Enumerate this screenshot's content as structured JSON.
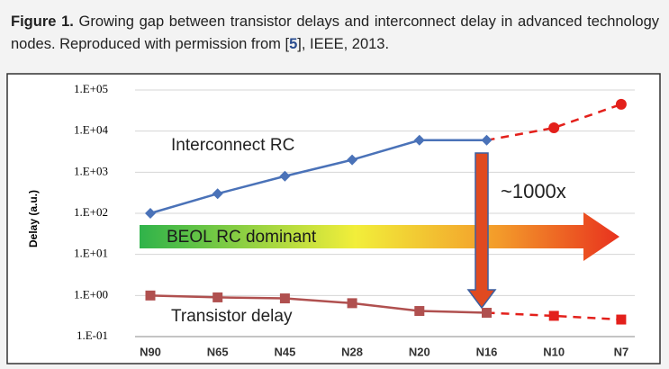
{
  "caption": {
    "label": "Figure 1.",
    "text_before": "Growing gap between transistor delays and interconnect delay in advanced technology nodes. Reproduced with permission from [",
    "ref": "5",
    "text_after": "], IEEE, 2013."
  },
  "chart_data": {
    "type": "line",
    "y_label": "Delay (a.u.)",
    "log_scale": true,
    "grid": true,
    "categories": [
      "N90",
      "N65",
      "N45",
      "N28",
      "N20",
      "N16",
      "N10",
      "N7"
    ],
    "projected_from": 5,
    "series": [
      {
        "name": "Interconnect RC",
        "color": "#4a72b8",
        "projected_color": "#e3201b",
        "marker": "diamond",
        "projected_marker": "circle",
        "values": [
          100,
          300,
          800,
          2000,
          6000,
          6000,
          12000,
          45000
        ]
      },
      {
        "name": "Transistor delay",
        "color": "#b0504f",
        "projected_color": "#e3201b",
        "marker": "square",
        "projected_marker": "square",
        "values": [
          1.0,
          0.9,
          0.85,
          0.65,
          0.42,
          0.38,
          0.32,
          0.26
        ]
      }
    ],
    "ylim": [
      0.1,
      100000
    ],
    "yticks": [
      {
        "value": 0.1,
        "label": "1.E-01"
      },
      {
        "value": 1,
        "label": "1.E+00"
      },
      {
        "value": 10,
        "label": "1.E+01"
      },
      {
        "value": 100,
        "label": "1.E+02"
      },
      {
        "value": 1000,
        "label": "1.E+03"
      },
      {
        "value": 10000,
        "label": "1.E+04"
      },
      {
        "value": 100000,
        "label": "1.E+05"
      }
    ],
    "annotations": {
      "gap": "~1000x",
      "region": "BEOL RC dominant"
    }
  }
}
